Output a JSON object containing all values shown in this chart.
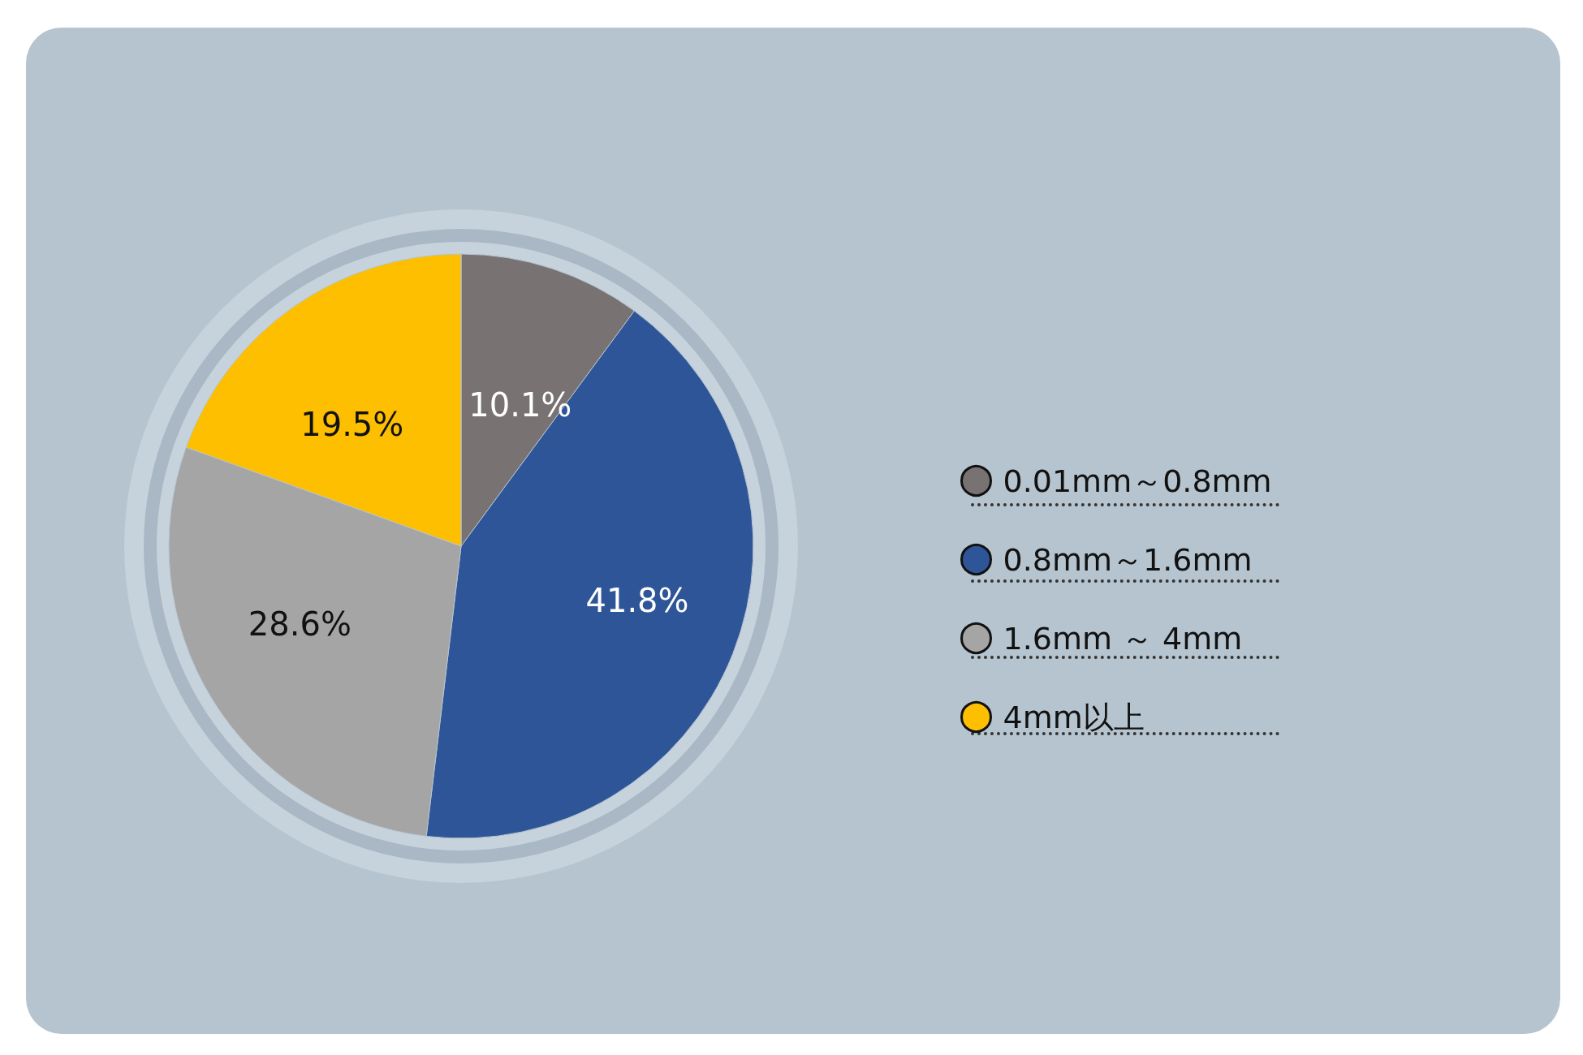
{
  "chart_data": {
    "type": "pie",
    "categories": [
      "0.01mm～0.8mm",
      "0.8mm～1.6mm",
      "1.6mm ～ 4mm",
      "4mm以上"
    ],
    "values": [
      10.1,
      41.8,
      28.6,
      19.5
    ],
    "colors": [
      "#787372",
      "#2e5597",
      "#a5a5a5",
      "#fdbf00"
    ],
    "value_labels": [
      "10.1%",
      "41.8%",
      "28.6%",
      "19.5%"
    ],
    "legend": "right"
  }
}
